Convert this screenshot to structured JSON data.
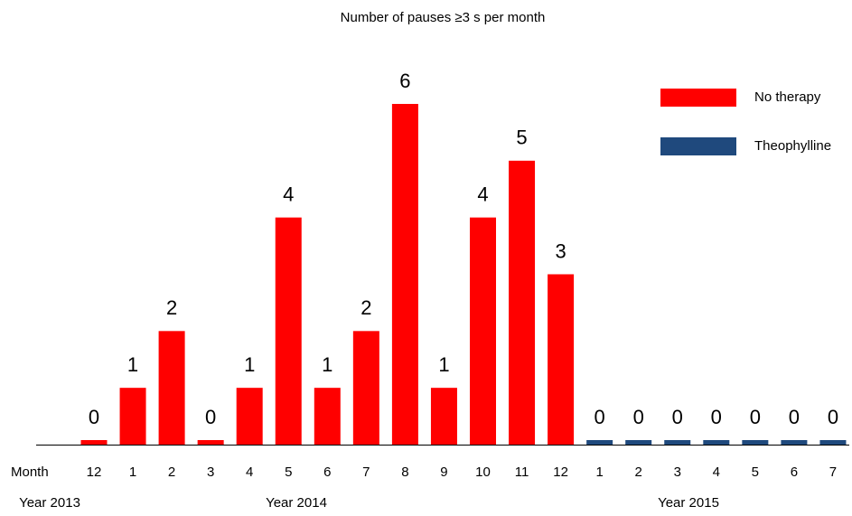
{
  "chart_data": {
    "type": "bar",
    "title": "Number of pauses ≥3 s per month",
    "row_label": "Month",
    "categories": [
      "12",
      "1",
      "2",
      "3",
      "4",
      "5",
      "6",
      "7",
      "8",
      "9",
      "10",
      "11",
      "12",
      "1",
      "2",
      "3",
      "4",
      "5",
      "6",
      "7"
    ],
    "year_labels": [
      "Year  2013",
      "Year 2014",
      "Year 2015"
    ],
    "series": [
      {
        "name": "No therapy",
        "color": "#ff0000",
        "values": [
          0,
          1,
          2,
          0,
          1,
          4,
          1,
          2,
          6,
          1,
          4,
          5,
          3,
          null,
          null,
          null,
          null,
          null,
          null,
          null
        ]
      },
      {
        "name": "Theophylline",
        "color": "#1f497d",
        "values": [
          null,
          null,
          null,
          null,
          null,
          null,
          null,
          null,
          null,
          null,
          null,
          null,
          null,
          0,
          0,
          0,
          0,
          0,
          0,
          0
        ]
      }
    ],
    "legend": "top-right"
  }
}
